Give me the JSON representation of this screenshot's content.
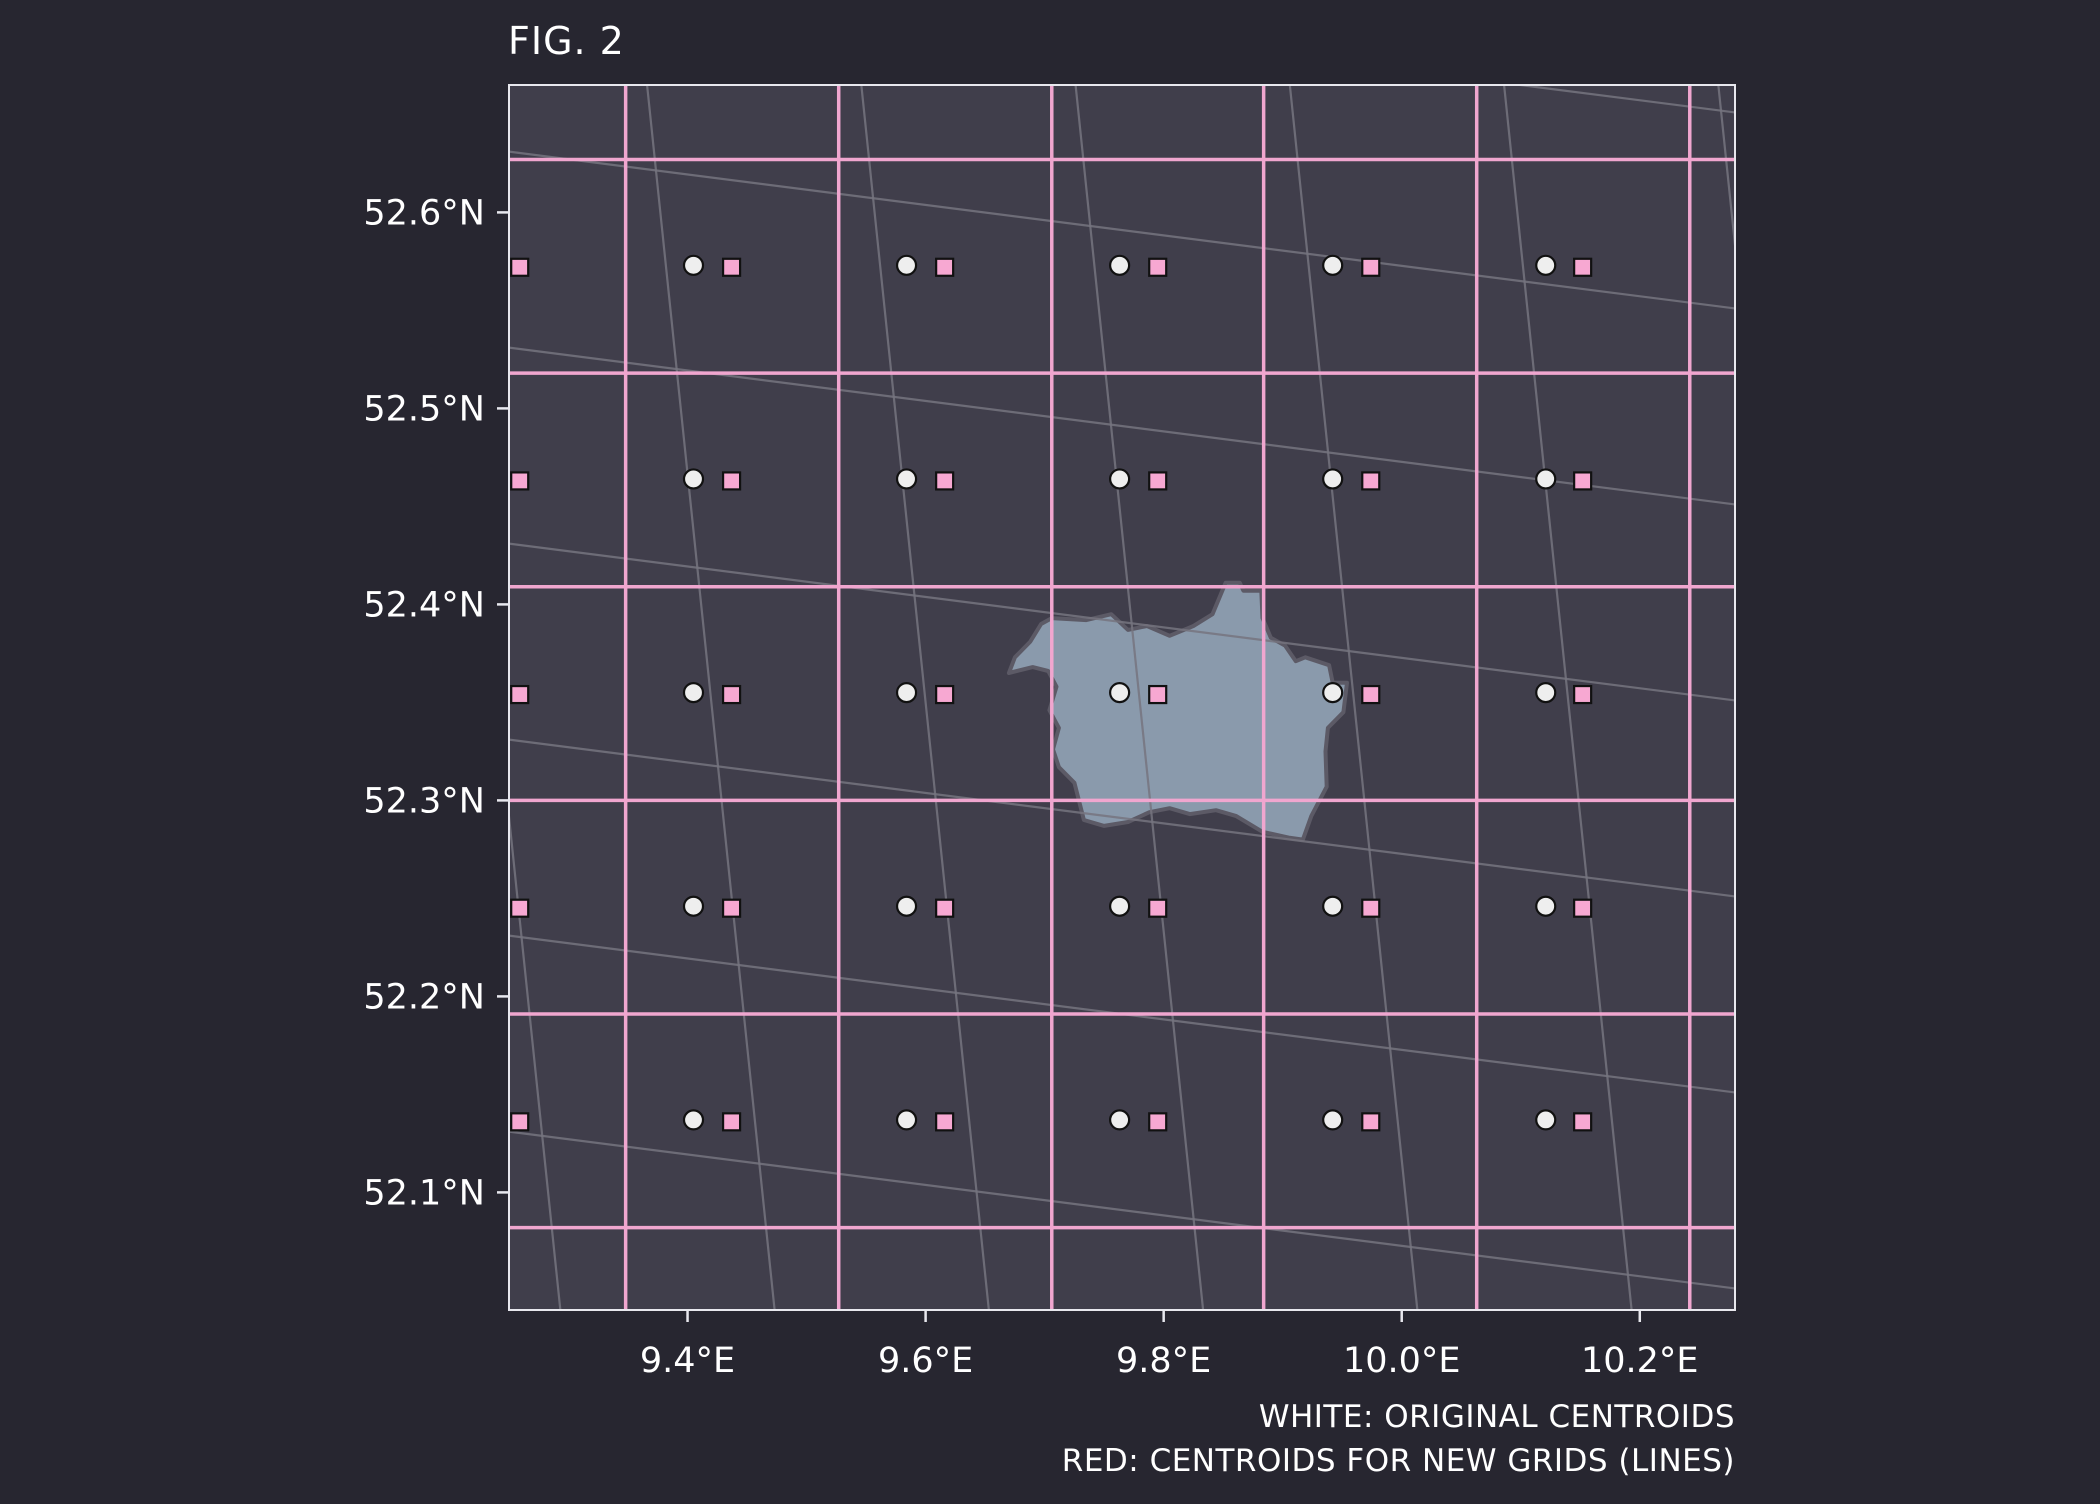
{
  "figure": {
    "title": "FIG. 2",
    "caption_lines": [
      "WHITE: ORIGINAL CENTROIDS",
      "RED: CENTROIDS FOR NEW GRIDS (LINES)"
    ]
  },
  "colors": {
    "background": "#272630",
    "panel": "#403e4b",
    "panel_border": "#e8e8ee",
    "new_grid_lines": "#f0a6cf",
    "original_grid_lines": "#76747f",
    "region_fill": "#8a9aac",
    "region_outline": "#5c5a66",
    "original_centroid": "#eeeeee",
    "new_centroid": "#f7a8d2",
    "marker_outline": "#111111",
    "text": "#ffffff"
  },
  "chart_data": {
    "type": "scatter",
    "title": "FIG. 2",
    "xlabel": "",
    "ylabel": "",
    "xlim": [
      9.25,
      10.28
    ],
    "ylim": [
      52.04,
      52.665
    ],
    "x_ticks": [
      {
        "value": 9.4,
        "label": "9.4°E"
      },
      {
        "value": 9.6,
        "label": "9.6°E"
      },
      {
        "value": 9.8,
        "label": "9.8°E"
      },
      {
        "value": 10.0,
        "label": "10.0°E"
      },
      {
        "value": 10.2,
        "label": "10.2°E"
      }
    ],
    "y_ticks": [
      {
        "value": 52.1,
        "label": "52.1°N"
      },
      {
        "value": 52.2,
        "label": "52.2°N"
      },
      {
        "value": 52.3,
        "label": "52.3°N"
      },
      {
        "value": 52.4,
        "label": "52.4°N"
      },
      {
        "value": 52.5,
        "label": "52.5°N"
      },
      {
        "value": 52.6,
        "label": "52.6°N"
      }
    ],
    "grid": false,
    "new_grid_lines": {
      "lon": [
        9.348,
        9.527,
        9.706,
        9.884,
        10.063,
        10.242
      ],
      "lat": [
        52.082,
        52.191,
        52.3,
        52.409,
        52.518,
        52.627
      ]
    },
    "original_grid_lines": [
      [
        [
          9.18,
          52.7
        ],
        [
          9.3,
          52.0
        ]
      ],
      [
        [
          9.36,
          52.7
        ],
        [
          9.48,
          52.0
        ]
      ],
      [
        [
          9.54,
          52.7
        ],
        [
          9.66,
          52.0
        ]
      ],
      [
        [
          9.72,
          52.7
        ],
        [
          9.84,
          52.0
        ]
      ],
      [
        [
          9.9,
          52.7
        ],
        [
          10.02,
          52.0
        ]
      ],
      [
        [
          10.08,
          52.7
        ],
        [
          10.2,
          52.0
        ]
      ],
      [
        [
          10.26,
          52.7
        ],
        [
          10.38,
          52.0
        ]
      ],
      [
        [
          9.25,
          52.131
        ],
        [
          10.28,
          52.051
        ]
      ],
      [
        [
          9.25,
          52.231
        ],
        [
          10.28,
          52.151
        ]
      ],
      [
        [
          9.25,
          52.331
        ],
        [
          10.28,
          52.251
        ]
      ],
      [
        [
          9.25,
          52.431
        ],
        [
          10.28,
          52.351
        ]
      ],
      [
        [
          9.25,
          52.531
        ],
        [
          10.28,
          52.451
        ]
      ],
      [
        [
          9.25,
          52.631
        ],
        [
          10.28,
          52.551
        ]
      ],
      [
        [
          9.25,
          52.731
        ],
        [
          10.28,
          52.651
        ]
      ]
    ],
    "series": [
      {
        "marker": "circle",
        "points": [
          [
            9.405,
            52.573
          ],
          [
            9.584,
            52.573
          ],
          [
            9.763,
            52.573
          ],
          [
            9.942,
            52.573
          ],
          [
            10.121,
            52.573
          ],
          [
            9.405,
            52.464
          ],
          [
            9.584,
            52.464
          ],
          [
            9.763,
            52.464
          ],
          [
            9.942,
            52.464
          ],
          [
            10.121,
            52.464
          ],
          [
            9.405,
            52.355
          ],
          [
            9.584,
            52.355
          ],
          [
            9.763,
            52.355
          ],
          [
            9.942,
            52.355
          ],
          [
            10.121,
            52.355
          ],
          [
            9.405,
            52.246
          ],
          [
            9.584,
            52.246
          ],
          [
            9.763,
            52.246
          ],
          [
            9.942,
            52.246
          ],
          [
            10.121,
            52.246
          ],
          [
            9.405,
            52.137
          ],
          [
            9.584,
            52.137
          ],
          [
            9.763,
            52.137
          ],
          [
            9.942,
            52.137
          ],
          [
            10.121,
            52.137
          ]
        ]
      },
      {
        "marker": "square",
        "points": [
          [
            9.259,
            52.572
          ],
          [
            9.437,
            52.572
          ],
          [
            9.616,
            52.572
          ],
          [
            9.795,
            52.572
          ],
          [
            9.974,
            52.572
          ],
          [
            10.152,
            52.572
          ],
          [
            9.259,
            52.463
          ],
          [
            9.437,
            52.463
          ],
          [
            9.616,
            52.463
          ],
          [
            9.795,
            52.463
          ],
          [
            9.974,
            52.463
          ],
          [
            10.152,
            52.463
          ],
          [
            9.259,
            52.354
          ],
          [
            9.437,
            52.354
          ],
          [
            9.616,
            52.354
          ],
          [
            9.795,
            52.354
          ],
          [
            9.974,
            52.354
          ],
          [
            10.152,
            52.354
          ],
          [
            9.259,
            52.245
          ],
          [
            9.437,
            52.245
          ],
          [
            9.616,
            52.245
          ],
          [
            9.795,
            52.245
          ],
          [
            9.974,
            52.245
          ],
          [
            10.152,
            52.245
          ],
          [
            9.259,
            52.136
          ],
          [
            9.437,
            52.136
          ],
          [
            9.616,
            52.136
          ],
          [
            9.795,
            52.136
          ],
          [
            9.974,
            52.136
          ],
          [
            10.152,
            52.136
          ]
        ]
      }
    ],
    "region": {
      "polygon": [
        [
          9.697,
          52.39
        ],
        [
          9.706,
          52.393
        ],
        [
          9.735,
          52.392
        ],
        [
          9.756,
          52.395
        ],
        [
          9.77,
          52.387
        ],
        [
          9.786,
          52.389
        ],
        [
          9.805,
          52.384
        ],
        [
          9.825,
          52.389
        ],
        [
          9.841,
          52.395
        ],
        [
          9.852,
          52.411
        ],
        [
          9.864,
          52.411
        ],
        [
          9.867,
          52.407
        ],
        [
          9.882,
          52.407
        ],
        [
          9.883,
          52.393
        ],
        [
          9.89,
          52.383
        ],
        [
          9.902,
          52.379
        ],
        [
          9.911,
          52.371
        ],
        [
          9.919,
          52.373
        ],
        [
          9.939,
          52.369
        ],
        [
          9.942,
          52.36
        ],
        [
          9.954,
          52.36
        ],
        [
          9.951,
          52.345
        ],
        [
          9.938,
          52.337
        ],
        [
          9.936,
          52.325
        ],
        [
          9.937,
          52.307
        ],
        [
          9.924,
          52.292
        ],
        [
          9.917,
          52.28
        ],
        [
          9.905,
          52.281
        ],
        [
          9.883,
          52.284
        ],
        [
          9.861,
          52.292
        ],
        [
          9.844,
          52.295
        ],
        [
          9.822,
          52.293
        ],
        [
          9.805,
          52.296
        ],
        [
          9.788,
          52.294
        ],
        [
          9.77,
          52.289
        ],
        [
          9.75,
          52.287
        ],
        [
          9.733,
          52.29
        ],
        [
          9.725,
          52.309
        ],
        [
          9.712,
          52.317
        ],
        [
          9.707,
          52.326
        ],
        [
          9.712,
          52.337
        ],
        [
          9.704,
          52.346
        ],
        [
          9.71,
          52.358
        ],
        [
          9.703,
          52.366
        ],
        [
          9.69,
          52.368
        ],
        [
          9.67,
          52.365
        ],
        [
          9.675,
          52.373
        ],
        [
          9.688,
          52.381
        ],
        [
          9.697,
          52.39
        ]
      ]
    }
  }
}
